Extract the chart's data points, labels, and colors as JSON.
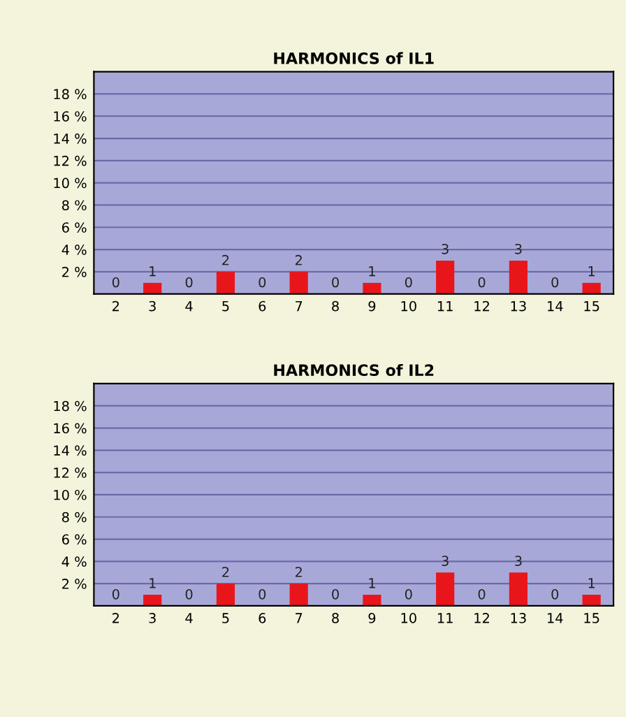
{
  "chart_data": [
    {
      "type": "bar",
      "title": "HARMONICS of IL1",
      "categories": [
        "2",
        "3",
        "4",
        "5",
        "6",
        "7",
        "8",
        "9",
        "10",
        "11",
        "12",
        "13",
        "14",
        "15"
      ],
      "series": [
        {
          "color": "#e8161b",
          "values": [
            0,
            1,
            0,
            2,
            0,
            2,
            0,
            1,
            0,
            3,
            0,
            3,
            0,
            1
          ]
        }
      ],
      "ylim": [
        0,
        20
      ],
      "yticks": [
        {
          "value": 2,
          "label": "2 %"
        },
        {
          "value": 4,
          "label": "4 %"
        },
        {
          "value": 6,
          "label": "6 %"
        },
        {
          "value": 8,
          "label": "8 %"
        },
        {
          "value": 10,
          "label": "10 %"
        },
        {
          "value": 12,
          "label": "12 %"
        },
        {
          "value": 14,
          "label": "14 %"
        },
        {
          "value": 16,
          "label": "16 %"
        },
        {
          "value": 18,
          "label": "18 %"
        }
      ],
      "grid": "y",
      "data_labels": true
    },
    {
      "type": "bar",
      "title": "HARMONICS of IL2",
      "categories": [
        "2",
        "3",
        "4",
        "5",
        "6",
        "7",
        "8",
        "9",
        "10",
        "11",
        "12",
        "13",
        "14",
        "15"
      ],
      "series": [
        {
          "color": "#e8161b",
          "values": [
            0,
            1,
            0,
            2,
            0,
            2,
            0,
            1,
            0,
            3,
            0,
            3,
            0,
            1
          ]
        }
      ],
      "ylim": [
        0,
        20
      ],
      "yticks": [
        {
          "value": 2,
          "label": "2 %"
        },
        {
          "value": 4,
          "label": "4 %"
        },
        {
          "value": 6,
          "label": "6 %"
        },
        {
          "value": 8,
          "label": "8 %"
        },
        {
          "value": 10,
          "label": "10 %"
        },
        {
          "value": 12,
          "label": "12 %"
        },
        {
          "value": 14,
          "label": "14 %"
        },
        {
          "value": 16,
          "label": "16 %"
        },
        {
          "value": 18,
          "label": "18 %"
        }
      ],
      "grid": "y",
      "data_labels": true
    }
  ]
}
